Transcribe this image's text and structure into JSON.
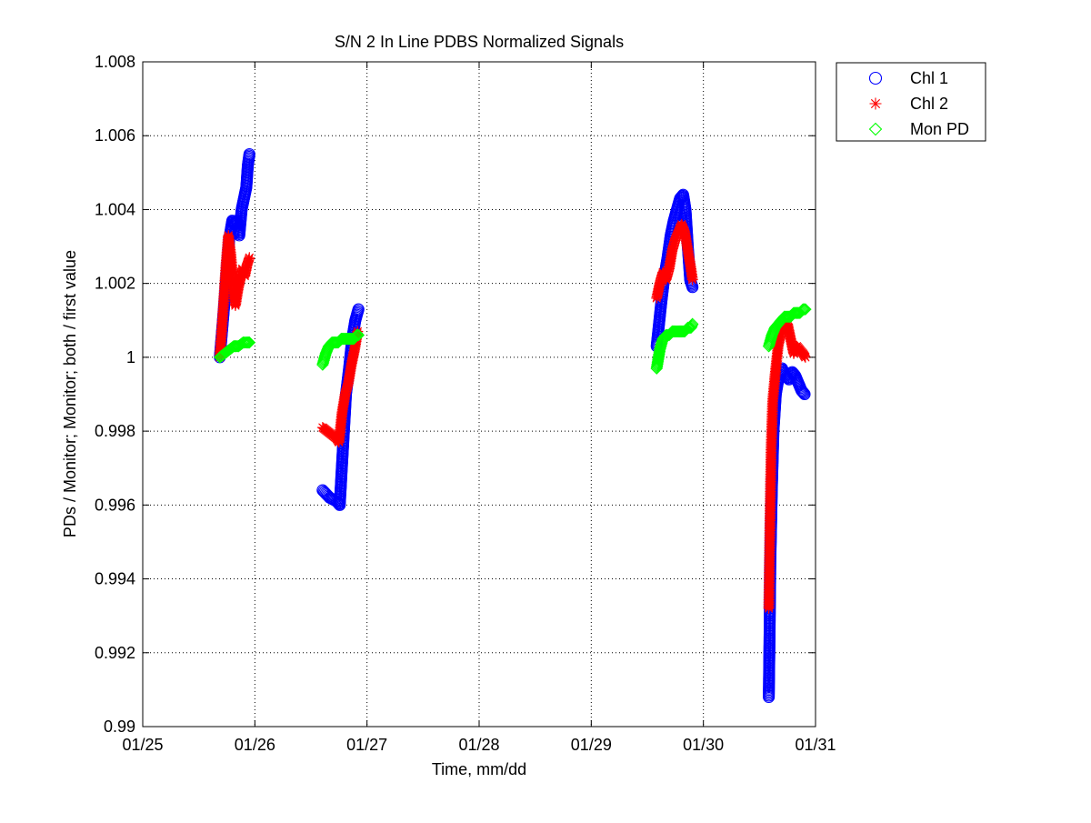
{
  "chart_data": {
    "type": "scatter",
    "title": "S/N 2 In Line PDBS Normalized Signals",
    "xlabel": "Time, mm/dd",
    "ylabel": "PDs / Monitor; Monitor; both / first value",
    "x_type": "date",
    "xlim": [
      "01/25",
      "01/31"
    ],
    "ylim": [
      0.99,
      1.008
    ],
    "x_ticks": [
      "01/25",
      "01/26",
      "01/27",
      "01/28",
      "01/29",
      "01/30",
      "01/31"
    ],
    "y_ticks": [
      "0.99",
      "0.992",
      "0.994",
      "0.996",
      "0.998",
      "1",
      "1.002",
      "1.004",
      "1.006",
      "1.008"
    ],
    "grid": true,
    "legend_position": "outside-top-right",
    "series": [
      {
        "name": "Chl 1",
        "marker": "circle",
        "color": "#0000ff",
        "segments": [
          [
            [
              "01/25 16:30",
              1.0
            ],
            [
              "01/25 17:30",
              1.0015
            ],
            [
              "01/25 18:30",
              1.0032
            ],
            [
              "01/25 19:10",
              1.0037
            ],
            [
              "01/25 19:40",
              1.0036
            ],
            [
              "01/25 20:10",
              1.0037
            ],
            [
              "01/25 20:40",
              1.0033
            ],
            [
              "01/25 21:10",
              1.004
            ],
            [
              "01/25 21:40",
              1.0043
            ],
            [
              "01/25 22:10",
              1.0046
            ],
            [
              "01/25 22:30",
              1.0052
            ],
            [
              "01/25 22:50",
              1.0055
            ]
          ],
          [
            [
              "01/26 14:30",
              0.9964
            ],
            [
              "01/26 16:00",
              0.9962
            ],
            [
              "01/26 17:30",
              0.9961
            ],
            [
              "01/26 18:10",
              0.996
            ],
            [
              "01/26 18:50",
              0.9975
            ],
            [
              "01/26 19:30",
              0.999
            ],
            [
              "01/26 20:10",
              0.9997
            ],
            [
              "01/26 20:50",
              1.0005
            ],
            [
              "01/26 21:30",
              1.001
            ],
            [
              "01/26 22:10",
              1.0013
            ]
          ],
          [
            [
              "01/29 14:00",
              1.0003
            ],
            [
              "01/29 15:00",
              1.0015
            ],
            [
              "01/29 15:40",
              1.0022
            ],
            [
              "01/29 16:20",
              1.0027
            ],
            [
              "01/29 17:00",
              1.0033
            ],
            [
              "01/29 17:40",
              1.0037
            ],
            [
              "01/29 18:20",
              1.004
            ],
            [
              "01/29 19:00",
              1.0043
            ],
            [
              "01/29 19:40",
              1.0044
            ],
            [
              "01/29 20:10",
              1.004
            ],
            [
              "01/29 20:40",
              1.003
            ],
            [
              "01/29 21:10",
              1.0021
            ],
            [
              "01/29 21:40",
              1.0019
            ]
          ],
          [
            [
              "01/30 14:00",
              0.9908
            ],
            [
              "01/30 14:10",
              0.9925
            ],
            [
              "01/30 14:20",
              0.9945
            ],
            [
              "01/30 14:40",
              0.9965
            ],
            [
              "01/30 15:00",
              0.998
            ],
            [
              "01/30 15:30",
              0.999
            ],
            [
              "01/30 16:10",
              0.9995
            ],
            [
              "01/30 16:50",
              0.9997
            ],
            [
              "01/30 17:30",
              0.9995
            ],
            [
              "01/30 18:20",
              0.9994
            ],
            [
              "01/30 19:00",
              0.9996
            ],
            [
              "01/30 19:40",
              0.9995
            ],
            [
              "01/30 20:20",
              0.9993
            ],
            [
              "01/30 21:00",
              0.9991
            ],
            [
              "01/30 21:40",
              0.999
            ]
          ]
        ]
      },
      {
        "name": "Chl 2",
        "marker": "star",
        "color": "#ff0000",
        "segments": [
          [
            [
              "01/25 16:30",
              1.0
            ],
            [
              "01/25 17:10",
              1.0012
            ],
            [
              "01/25 17:50",
              1.0025
            ],
            [
              "01/25 18:20",
              1.0033
            ],
            [
              "01/25 18:50",
              1.0028
            ],
            [
              "01/25 19:20",
              1.002
            ],
            [
              "01/25 19:50",
              1.0014
            ],
            [
              "01/25 20:20",
              1.0018
            ],
            [
              "01/25 20:50",
              1.0021
            ],
            [
              "01/25 21:20",
              1.0024
            ],
            [
              "01/25 21:50",
              1.0022
            ],
            [
              "01/25 22:20",
              1.0025
            ],
            [
              "01/25 22:50",
              1.0027
            ]
          ],
          [
            [
              "01/26 14:30",
              0.9981
            ],
            [
              "01/26 15:30",
              0.998
            ],
            [
              "01/26 16:30",
              0.9979
            ],
            [
              "01/26 17:30",
              0.9978
            ],
            [
              "01/26 18:00",
              0.9977
            ],
            [
              "01/26 18:40",
              0.9985
            ],
            [
              "01/26 19:20",
              0.999
            ],
            [
              "01/26 20:00",
              0.9993
            ],
            [
              "01/26 20:40",
              0.9998
            ],
            [
              "01/26 21:20",
              1.0002
            ],
            [
              "01/26 22:00",
              1.0007
            ]
          ],
          [
            [
              "01/29 14:00",
              1.0016
            ],
            [
              "01/29 14:40",
              1.002
            ],
            [
              "01/29 15:20",
              1.0023
            ],
            [
              "01/29 16:00",
              1.0021
            ],
            [
              "01/29 16:40",
              1.0024
            ],
            [
              "01/29 17:20",
              1.0029
            ],
            [
              "01/29 18:00",
              1.0032
            ],
            [
              "01/29 18:40",
              1.0034
            ],
            [
              "01/29 19:20",
              1.0036
            ],
            [
              "01/29 20:00",
              1.0034
            ],
            [
              "01/29 20:40",
              1.0029
            ],
            [
              "01/29 21:20",
              1.0024
            ],
            [
              "01/29 21:40",
              1.0021
            ]
          ],
          [
            [
              "01/30 14:00",
              0.9932
            ],
            [
              "01/30 14:15",
              0.9955
            ],
            [
              "01/30 14:30",
              0.9975
            ],
            [
              "01/30 14:50",
              0.9988
            ],
            [
              "01/30 15:20",
              0.9995
            ],
            [
              "01/30 16:00",
              1.0003
            ],
            [
              "01/30 16:40",
              1.0007
            ],
            [
              "01/30 17:20",
              1.0008
            ],
            [
              "01/30 18:00",
              1.0009
            ],
            [
              "01/30 18:40",
              1.0005
            ],
            [
              "01/30 19:20",
              1.0001
            ],
            [
              "01/30 20:00",
              1.0003
            ],
            [
              "01/30 20:40",
              1.0002
            ],
            [
              "01/30 21:20",
              1.0001
            ],
            [
              "01/30 21:50",
              1.0
            ]
          ]
        ]
      },
      {
        "name": "Mon PD",
        "marker": "diamond",
        "color": "#00ff00",
        "segments": [
          [
            [
              "01/25 16:30",
              1.0
            ],
            [
              "01/25 17:30",
              1.0001
            ],
            [
              "01/25 18:30",
              1.0002
            ],
            [
              "01/25 19:30",
              1.0003
            ],
            [
              "01/25 20:30",
              1.0003
            ],
            [
              "01/25 21:30",
              1.0004
            ],
            [
              "01/25 22:30",
              1.0004
            ],
            [
              "01/25 22:50",
              1.0004
            ]
          ],
          [
            [
              "01/26 14:30",
              0.9998
            ],
            [
              "01/26 15:10",
              1.0001
            ],
            [
              "01/26 15:50",
              1.0003
            ],
            [
              "01/26 16:30",
              1.0004
            ],
            [
              "01/26 17:10",
              1.0004
            ],
            [
              "01/26 17:50",
              1.0004
            ],
            [
              "01/26 18:30",
              1.0005
            ],
            [
              "01/26 19:10",
              1.0005
            ],
            [
              "01/26 19:50",
              1.0005
            ],
            [
              "01/26 20:30",
              1.0005
            ],
            [
              "01/26 21:10",
              1.0005
            ],
            [
              "01/26 21:50",
              1.0006
            ],
            [
              "01/26 22:10",
              1.0006
            ]
          ],
          [
            [
              "01/29 14:00",
              0.9997
            ],
            [
              "01/29 14:40",
              1.0002
            ],
            [
              "01/29 15:20",
              1.0005
            ],
            [
              "01/29 16:00",
              1.0006
            ],
            [
              "01/29 16:40",
              1.0006
            ],
            [
              "01/29 17:20",
              1.0007
            ],
            [
              "01/29 18:00",
              1.0007
            ],
            [
              "01/29 18:40",
              1.0007
            ],
            [
              "01/29 19:20",
              1.0007
            ],
            [
              "01/29 20:00",
              1.0007
            ],
            [
              "01/29 20:40",
              1.0008
            ],
            [
              "01/29 21:20",
              1.0008
            ],
            [
              "01/29 21:40",
              1.0009
            ]
          ],
          [
            [
              "01/30 14:00",
              1.0003
            ],
            [
              "01/30 14:40",
              1.0006
            ],
            [
              "01/30 15:20",
              1.0008
            ],
            [
              "01/30 16:00",
              1.0009
            ],
            [
              "01/30 16:40",
              1.001
            ],
            [
              "01/30 17:20",
              1.0011
            ],
            [
              "01/30 18:00",
              1.0011
            ],
            [
              "01/30 18:40",
              1.0011
            ],
            [
              "01/30 19:20",
              1.0012
            ],
            [
              "01/30 20:00",
              1.0012
            ],
            [
              "01/30 20:40",
              1.0012
            ],
            [
              "01/30 21:20",
              1.0013
            ],
            [
              "01/30 21:50",
              1.0013
            ]
          ]
        ]
      }
    ]
  }
}
